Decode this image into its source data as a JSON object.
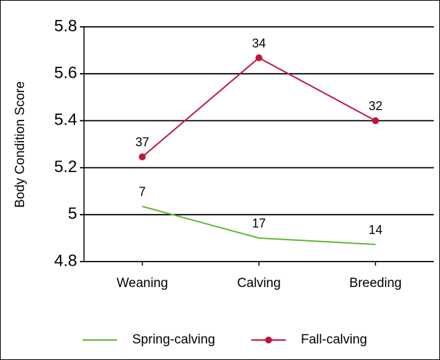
{
  "chart_data": {
    "type": "line",
    "ylabel": "Body Condition Score",
    "categories": [
      "Weaning",
      "Calving",
      "Breeding"
    ],
    "series": [
      {
        "name": "Spring-calving",
        "color": "#5cb82e",
        "marker": false,
        "values": [
          5.035,
          4.9,
          4.873
        ],
        "annotations": [
          "7",
          "17",
          "14"
        ]
      },
      {
        "name": "Fall-calving",
        "color": "#c0143c",
        "marker": true,
        "values": [
          5.246,
          5.668,
          5.4
        ],
        "annotations": [
          "37",
          "34",
          "32"
        ]
      }
    ],
    "ylim": [
      4.8,
      5.8
    ],
    "yticks": [
      4.8,
      5,
      5.2,
      5.4,
      5.6,
      5.8
    ],
    "grid": true,
    "legend": "bottom"
  }
}
